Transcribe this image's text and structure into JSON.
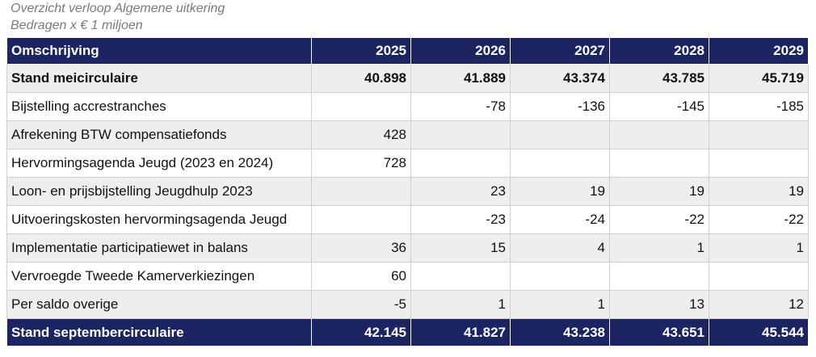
{
  "caption": {
    "line1": "Overzicht verloop Algemene uitkering",
    "line2": "Bedragen x € 1 miljoen"
  },
  "table": {
    "headers": [
      "Omschrijving",
      "2025",
      "2026",
      "2027",
      "2028",
      "2029"
    ],
    "rows": [
      [
        "Stand meicirculaire",
        "40.898",
        "41.889",
        "43.374",
        "43.785",
        "45.719"
      ],
      [
        "Bijstelling accrestranches",
        "",
        "-78",
        "-136",
        "-145",
        "-185"
      ],
      [
        "Afrekening BTW compensatiefonds",
        "428",
        "",
        "",
        "",
        ""
      ],
      [
        "Hervormingsagenda Jeugd (2023 en 2024)",
        "728",
        "",
        "",
        "",
        ""
      ],
      [
        "Loon- en prijsbijstelling Jeugdhulp 2023",
        "",
        "23",
        "19",
        "19",
        "19"
      ],
      [
        "Uitvoeringskosten hervormingsagenda Jeugd",
        "",
        "-23",
        "-24",
        "-22",
        "-22"
      ],
      [
        "Implementatie participatiewet in balans",
        "36",
        "15",
        "4",
        "1",
        "1"
      ],
      [
        "Vervroegde Tweede Kamerverkiezingen",
        "60",
        "",
        "",
        "",
        ""
      ],
      [
        "Per saldo overige",
        "-5",
        "1",
        "1",
        "13",
        "12"
      ]
    ],
    "total": [
      "Stand septembercirculaire",
      "42.145",
      "41.827",
      "43.238",
      "43.651",
      "45.544"
    ]
  },
  "colors": {
    "header_bg": "#1d2462",
    "alt_row_bg": "#efeeec"
  }
}
